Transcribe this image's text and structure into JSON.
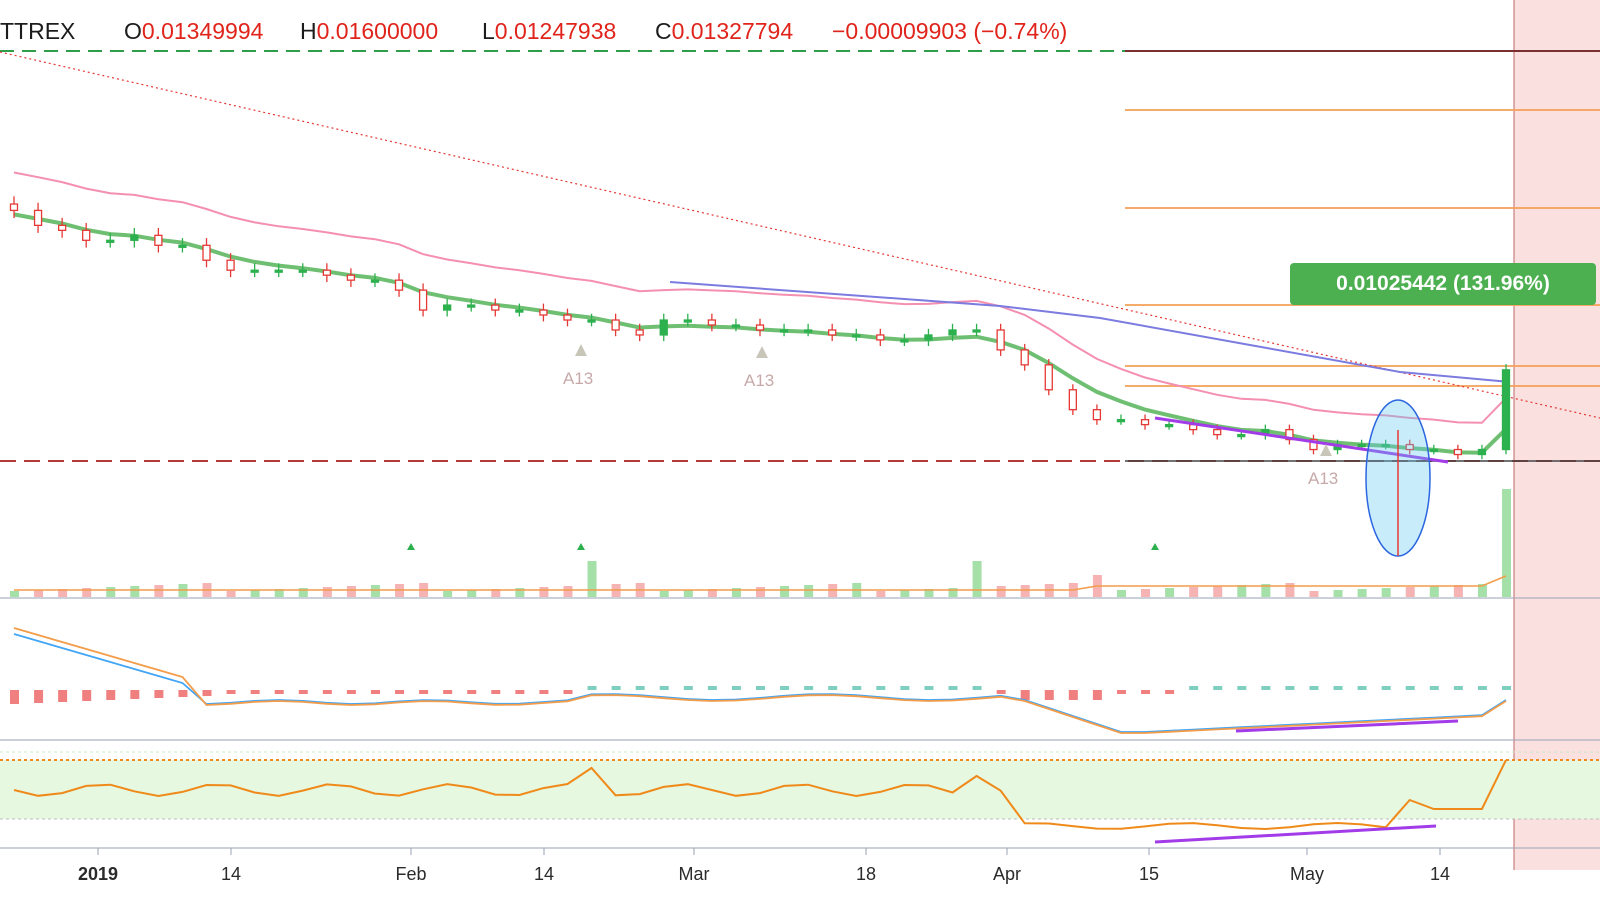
{
  "header": {
    "symbol": "TTREX",
    "open_key": "O",
    "open_value": "0.01349994",
    "high_key": "H",
    "high_value": "0.01600000",
    "low_key": "L",
    "low_value": "0.01247938",
    "close_key": "C",
    "close_value": "0.01327794",
    "change": "−0.00009903 (−0.74%)"
  },
  "measure_label": "0.01025442 (131.96%)",
  "annotation_label": "A13",
  "colors": {
    "up": "#2db14e",
    "down": "#e53935",
    "ema_green": "#6fbf73",
    "ma_pink": "#f48fb1",
    "trend_blue": "#7b7be0",
    "divergence": "#a23be8",
    "fib": "#f5a25a",
    "macd_line": "#42a5f5",
    "signal_line": "#f39c4a",
    "rsi_line": "#ef8a1a",
    "rsi_band": "#e6f8e0",
    "resistance_dash": "#2e9e4a",
    "support_dash": "#b23a3a"
  },
  "chart_data": {
    "type": "candlestick",
    "x_axis": {
      "tick_labels": [
        "2019",
        "14",
        "Feb",
        "14",
        "Mar",
        "18",
        "Apr",
        "15",
        "May",
        "14"
      ]
    },
    "price_levels": {
      "resistance_dashed": 0.016,
      "support_dashed": 0.00777,
      "open": 0.01349994,
      "high": 0.016,
      "low": 0.01247938,
      "close": 0.01327794
    },
    "series": [
      {
        "name": "price_candles_close",
        "values": [
          0.0128,
          0.0125,
          0.0124,
          0.0122,
          0.0122,
          0.0123,
          0.0121,
          0.0121,
          0.0118,
          0.0116,
          0.0116,
          0.0116,
          0.0116,
          0.0115,
          0.0114,
          0.0114,
          0.0112,
          0.0108,
          0.0109,
          0.0109,
          0.0108,
          0.0108,
          0.0107,
          0.0106,
          0.0106,
          0.0104,
          0.0103,
          0.0106,
          0.0106,
          0.0105,
          0.0105,
          0.0104,
          0.0104,
          0.0104,
          0.0103,
          0.0103,
          0.0102,
          0.0102,
          0.0103,
          0.0104,
          0.0104,
          0.01,
          0.0097,
          0.0092,
          0.0088,
          0.0086,
          0.0086,
          0.0085,
          0.0085,
          0.0084,
          0.0083,
          0.0083,
          0.0084,
          0.0082,
          0.008,
          0.0081,
          0.0081,
          0.0081,
          0.008,
          0.008,
          0.0079,
          0.008,
          0.0096
        ]
      },
      {
        "name": "macd",
        "values": []
      },
      {
        "name": "rsi",
        "values": []
      }
    ]
  }
}
